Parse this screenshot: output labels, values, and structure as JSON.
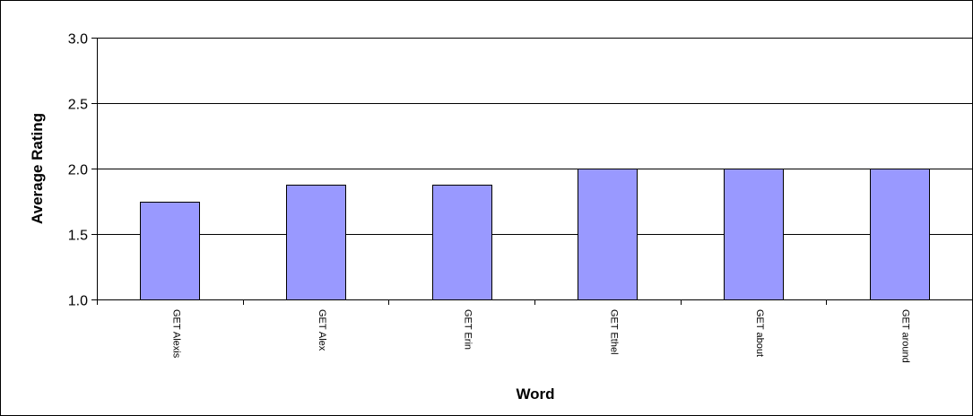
{
  "chart_data": {
    "type": "bar",
    "title": "",
    "xlabel": "Word",
    "ylabel": "Average Rating",
    "categories": [
      "GET Alexis",
      "GET Alex",
      "GET Erin",
      "GET Ethel",
      "GET about",
      "GET around"
    ],
    "values": [
      1.75,
      1.875,
      1.875,
      2.0,
      2.0,
      2.0
    ],
    "ylim": [
      1.0,
      3.0
    ],
    "yticks": [
      "1.0",
      "1.5",
      "2.0",
      "2.5",
      "3.0"
    ],
    "grid": true,
    "legend": "none",
    "colors": {
      "bar_fill": "#9999ff",
      "bar_stroke": "#000000",
      "grid": "#000000"
    }
  }
}
